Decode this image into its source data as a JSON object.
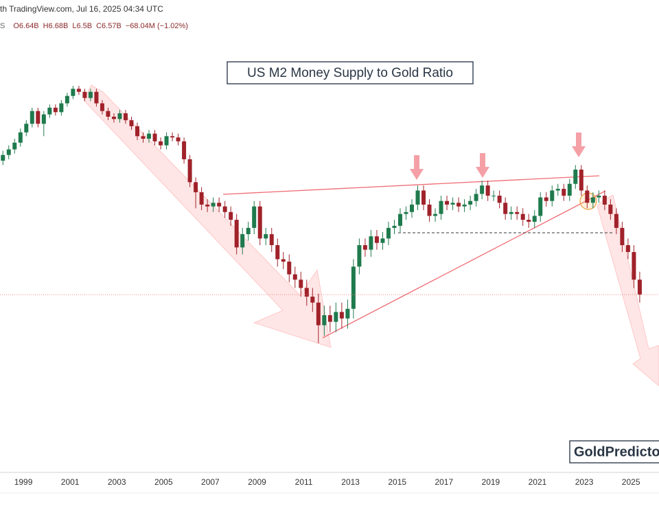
{
  "header": {
    "text": "th TradingView.com, Jul 16, 2025 04:34 UTC",
    "legend": [
      "S",
      "O6.64B",
      "H6.68B",
      "L6.5B",
      "C6.57B",
      "−68.04M (−1.02%)"
    ]
  },
  "watermark": "GoldPredicto",
  "chart_data": {
    "type": "candlestick",
    "title": "US M2 Money Supply to Gold Ratio",
    "log_scale": true,
    "grid": false,
    "up_color": "#1f7a4d",
    "down_color": "#a0222a",
    "price_line_color": "#f08080",
    "xlim": [
      1998,
      2026.2
    ],
    "ylim": [
      2.6,
      30.5
    ],
    "xticks": [
      1999,
      2001,
      2003,
      2005,
      2007,
      2009,
      2011,
      2013,
      2015,
      2017,
      2019,
      2021,
      2023,
      2025
    ],
    "x": [
      1998.125,
      1998.375,
      1998.625,
      1998.875,
      1999.125,
      1999.375,
      1999.625,
      1999.875,
      2000.125,
      2000.375,
      2000.625,
      2000.875,
      2001.125,
      2001.375,
      2001.625,
      2001.875,
      2002.125,
      2002.375,
      2002.625,
      2002.875,
      2003.125,
      2003.375,
      2003.625,
      2003.875,
      2004.125,
      2004.375,
      2004.625,
      2004.875,
      2005.125,
      2005.375,
      2005.625,
      2005.875,
      2006.125,
      2006.375,
      2006.625,
      2006.875,
      2007.125,
      2007.375,
      2007.625,
      2007.875,
      2008.125,
      2008.375,
      2008.625,
      2008.875,
      2009.125,
      2009.375,
      2009.625,
      2009.875,
      2010.125,
      2010.375,
      2010.625,
      2010.875,
      2011.125,
      2011.375,
      2011.625,
      2011.875,
      2012.125,
      2012.375,
      2012.625,
      2012.875,
      2013.125,
      2013.375,
      2013.625,
      2013.875,
      2014.125,
      2014.375,
      2014.625,
      2014.875,
      2015.125,
      2015.375,
      2015.625,
      2015.875,
      2016.125,
      2016.375,
      2016.625,
      2016.875,
      2017.125,
      2017.375,
      2017.625,
      2017.875,
      2018.125,
      2018.375,
      2018.625,
      2018.875,
      2019.125,
      2019.375,
      2019.625,
      2019.875,
      2020.125,
      2020.375,
      2020.625,
      2020.875,
      2021.125,
      2021.375,
      2021.625,
      2021.875,
      2022.125,
      2022.375,
      2022.625,
      2022.875,
      2023.125,
      2023.375,
      2023.625,
      2023.875,
      2024.125,
      2024.375,
      2024.625,
      2024.875,
      2025.125,
      2025.375
    ],
    "open": [
      13.2,
      13.6,
      14.0,
      14.5,
      15.3,
      16.0,
      17.1,
      16.0,
      16.8,
      17.4,
      17.0,
      17.8,
      18.5,
      19.2,
      18.9,
      18.3,
      18.9,
      17.8,
      17.1,
      16.6,
      16.4,
      16.9,
      16.3,
      15.8,
      15.0,
      14.8,
      15.2,
      14.6,
      14.3,
      15.0,
      14.9,
      14.6,
      13.3,
      11.8,
      11.2,
      10.5,
      10.4,
      10.6,
      10.4,
      10.1,
      9.7,
      8.4,
      9.0,
      9.3,
      10.4,
      8.8,
      9.0,
      8.5,
      7.9,
      7.8,
      7.3,
      7.1,
      6.8,
      6.5,
      6.3,
      5.6,
      5.9,
      5.7,
      6.0,
      5.8,
      6.1,
      7.6,
      8.5,
      8.3,
      8.9,
      8.6,
      8.8,
      9.3,
      9.4,
      10.0,
      10.1,
      10.5,
      11.3,
      10.5,
      9.9,
      10.0,
      10.7,
      10.5,
      10.6,
      10.4,
      10.5,
      10.7,
      11.1,
      11.6,
      11.0,
      11.0,
      10.6,
      10.0,
      10.1,
      10.0,
      9.7,
      9.6,
      9.9,
      10.9,
      10.7,
      11.3,
      11.4,
      11.0,
      11.7,
      12.6,
      11.3,
      10.6,
      10.9,
      11.0,
      10.5,
      10.0,
      9.3,
      8.5,
      8.2,
      7.1
    ],
    "high": [
      13.9,
      14.3,
      14.8,
      15.6,
      16.3,
      17.4,
      17.4,
      17.1,
      17.7,
      17.7,
      18.1,
      18.8,
      19.5,
      19.5,
      19.2,
      19.2,
      19.2,
      18.1,
      17.4,
      16.9,
      17.2,
      17.2,
      16.6,
      16.1,
      15.3,
      15.5,
      15.5,
      14.9,
      15.3,
      15.3,
      15.2,
      14.9,
      13.6,
      12.1,
      11.5,
      10.8,
      10.9,
      10.9,
      10.7,
      10.4,
      10.0,
      9.3,
      9.6,
      10.7,
      10.7,
      9.3,
      9.3,
      8.8,
      8.2,
      8.1,
      7.6,
      7.4,
      7.1,
      6.8,
      6.6,
      6.2,
      6.2,
      6.3,
      6.3,
      6.4,
      7.9,
      8.8,
      8.8,
      9.2,
      9.2,
      9.1,
      9.6,
      9.7,
      10.3,
      10.4,
      10.8,
      11.6,
      11.6,
      10.8,
      10.3,
      11.0,
      11.0,
      10.9,
      10.9,
      10.8,
      11.0,
      11.4,
      11.9,
      11.9,
      11.3,
      11.3,
      10.9,
      10.4,
      10.4,
      10.3,
      10.0,
      10.2,
      11.2,
      11.2,
      11.6,
      11.7,
      11.7,
      12.0,
      12.9,
      12.9,
      11.6,
      11.2,
      11.3,
      11.3,
      10.8,
      10.3,
      9.6,
      8.8,
      8.5,
      7.4
    ],
    "low": [
      12.9,
      13.3,
      13.7,
      14.2,
      15.0,
      15.7,
      15.7,
      15.0,
      16.5,
      16.7,
      16.7,
      17.5,
      18.2,
      18.6,
      18.0,
      18.0,
      17.5,
      16.8,
      16.3,
      16.1,
      16.1,
      16.0,
      15.5,
      14.7,
      14.5,
      14.5,
      14.3,
      14.0,
      14.0,
      14.6,
      14.3,
      13.0,
      11.5,
      10.3,
      10.2,
      10.1,
      10.1,
      10.1,
      9.8,
      9.4,
      8.1,
      8.1,
      8.7,
      9.0,
      8.5,
      8.5,
      8.2,
      7.6,
      7.5,
      7.0,
      6.8,
      6.5,
      6.2,
      6.0,
      5.1,
      5.3,
      5.4,
      5.4,
      5.5,
      5.5,
      5.8,
      7.3,
      8.0,
      8.0,
      8.3,
      8.3,
      8.5,
      9.0,
      9.1,
      9.7,
      9.8,
      10.2,
      10.2,
      9.6,
      9.6,
      9.7,
      10.2,
      10.2,
      10.1,
      10.1,
      10.2,
      10.4,
      10.8,
      10.7,
      10.7,
      10.3,
      9.7,
      9.7,
      9.7,
      9.4,
      9.3,
      9.3,
      9.6,
      10.4,
      10.4,
      11.0,
      10.7,
      10.7,
      11.4,
      11.0,
      10.3,
      10.3,
      10.6,
      10.2,
      9.7,
      9.0,
      8.2,
      7.9,
      6.8,
      6.3
    ],
    "close": [
      13.6,
      14.0,
      14.5,
      15.3,
      16.0,
      17.1,
      16.0,
      16.8,
      17.4,
      17.0,
      17.8,
      18.5,
      19.2,
      18.9,
      18.3,
      18.9,
      17.8,
      17.1,
      16.6,
      16.4,
      16.9,
      16.3,
      15.8,
      15.0,
      14.8,
      15.2,
      14.6,
      14.3,
      15.0,
      14.9,
      14.6,
      13.3,
      11.8,
      11.2,
      10.5,
      10.4,
      10.6,
      10.4,
      10.1,
      9.7,
      8.4,
      9.0,
      9.3,
      10.4,
      8.8,
      9.0,
      8.5,
      7.9,
      7.8,
      7.3,
      7.1,
      6.8,
      6.5,
      6.3,
      5.6,
      5.9,
      5.7,
      6.0,
      5.8,
      6.1,
      7.6,
      8.5,
      8.3,
      8.9,
      8.6,
      8.8,
      9.3,
      9.4,
      10.0,
      10.1,
      10.5,
      11.3,
      10.5,
      9.9,
      10.0,
      10.7,
      10.5,
      10.6,
      10.4,
      10.5,
      10.7,
      11.1,
      11.6,
      11.0,
      11.0,
      10.6,
      10.0,
      10.1,
      10.0,
      9.7,
      9.6,
      9.9,
      10.9,
      10.7,
      11.3,
      11.4,
      11.0,
      11.7,
      12.6,
      11.3,
      10.6,
      10.9,
      11.0,
      10.5,
      10.0,
      9.3,
      8.5,
      8.2,
      7.1,
      6.57
    ]
  }
}
